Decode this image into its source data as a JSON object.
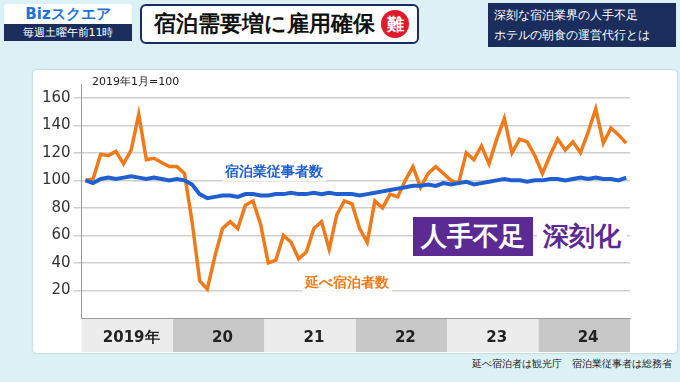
{
  "header": {
    "logo": "Bizスクエア",
    "schedule": "毎週土曜午前11時",
    "badge": "難",
    "caption": [
      "深刻な宿泊業界の人手不足",
      "ホテルの朝食の運営代行とは"
    ]
  },
  "chart_data": {
    "type": "line",
    "title": "宿泊需要増に雇用確保",
    "subtitle": "2019年1月=100",
    "categories": [
      null,
      null,
      null,
      null,
      null,
      null,
      "2019年",
      null,
      null,
      null,
      null,
      null,
      null,
      null,
      null,
      null,
      null,
      null,
      "20",
      null,
      null,
      null,
      null,
      null,
      null,
      null,
      null,
      null,
      null,
      null,
      "21",
      null,
      null,
      null,
      null,
      null,
      null,
      null,
      null,
      null,
      null,
      null,
      "22",
      null,
      null,
      null,
      null,
      null,
      null,
      null,
      null,
      null,
      null,
      null,
      "23",
      null,
      null,
      null,
      null,
      null,
      null,
      null,
      null,
      null,
      null,
      null,
      "24",
      null,
      null,
      null,
      null,
      null
    ],
    "series": [
      {
        "name": "宿泊業従事者数",
        "color": "#1f5fd0",
        "line_style": "solid",
        "values": [
          100,
          98,
          101,
          102,
          101,
          102,
          103,
          102,
          101,
          102,
          101,
          100,
          101,
          100,
          97,
          90,
          87,
          88,
          89,
          89,
          88,
          90,
          90,
          89,
          89,
          90,
          90,
          91,
          90,
          90,
          91,
          90,
          91,
          90,
          90,
          90,
          89,
          90,
          91,
          92,
          93,
          94,
          95,
          96,
          96,
          97,
          96,
          98,
          97,
          98,
          99,
          97,
          98,
          99,
          100,
          101,
          100,
          100,
          99,
          100,
          100,
          101,
          101,
          100,
          101,
          102,
          101,
          102,
          101,
          101,
          100,
          102
        ]
      },
      {
        "name": "延べ宿泊者数",
        "color": "#f07a1a",
        "line_style": "solid",
        "values": [
          100,
          101,
          119,
          118,
          121,
          112,
          122,
          148,
          115,
          116,
          113,
          110,
          110,
          105,
          70,
          27,
          21,
          45,
          65,
          70,
          65,
          82,
          85,
          68,
          40,
          42,
          60,
          55,
          43,
          48,
          65,
          70,
          50,
          75,
          85,
          83,
          65,
          55,
          85,
          80,
          90,
          88,
          100,
          110,
          95,
          105,
          110,
          105,
          100,
          98,
          120,
          115,
          125,
          112,
          130,
          145,
          120,
          130,
          128,
          118,
          105,
          118,
          130,
          122,
          128,
          120,
          135,
          152,
          127,
          138,
          133,
          127
        ]
      }
    ],
    "ylim": [
      0,
      170
    ],
    "yticks": [
      20,
      40,
      60,
      80,
      100,
      120,
      140,
      160
    ],
    "grid": true,
    "annotations": [
      "人手不足",
      "深刻化"
    ],
    "source": [
      "延べ宿泊者は観光庁",
      "宿泊業従事者は総務省"
    ]
  }
}
